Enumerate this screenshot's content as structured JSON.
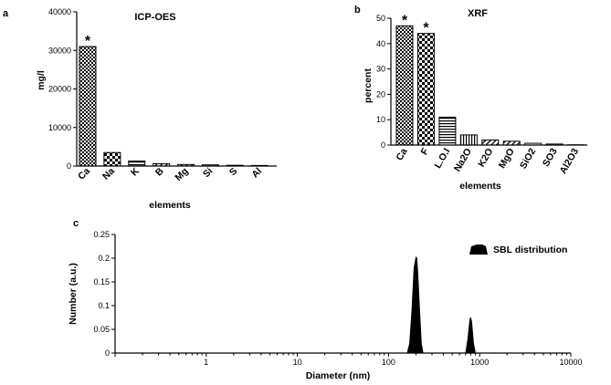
{
  "chart_data": [
    {
      "panel": "a",
      "type": "bar",
      "title": "ICP-OES",
      "xlabel": "elements",
      "ylabel": "mg/l",
      "ylim": [
        0,
        40000
      ],
      "yticks": [
        0,
        10000,
        20000,
        30000,
        40000
      ],
      "categories": [
        "Ca",
        "Na",
        "K",
        "B",
        "Mg",
        "Si",
        "S",
        "Al"
      ],
      "values": [
        31000,
        3500,
        1300,
        600,
        400,
        300,
        200,
        150
      ],
      "annotations": [
        {
          "category": "Ca",
          "text": "*"
        }
      ]
    },
    {
      "panel": "b",
      "type": "bar",
      "title": "XRF",
      "xlabel": "elements",
      "ylabel": "percent",
      "ylim": [
        0,
        50
      ],
      "yticks": [
        0,
        10,
        20,
        30,
        40,
        50
      ],
      "categories": [
        "Ca",
        "F",
        "L.O.I",
        "Na2O",
        "K2O",
        "MgO",
        "SiO2",
        "SO3",
        "Al2O3"
      ],
      "values": [
        47,
        44,
        11,
        4,
        2,
        1.5,
        0.7,
        0.4,
        0.1
      ],
      "annotations": [
        {
          "category": "Ca",
          "text": "*"
        },
        {
          "category": "F",
          "text": "*"
        }
      ]
    },
    {
      "panel": "c",
      "type": "area",
      "xlabel": "Diameter (nm)",
      "ylabel": "Number (a.u.)",
      "xscale": "log",
      "xlim": [
        0.1,
        10000
      ],
      "xticks": [
        1,
        10,
        100,
        1000,
        10000
      ],
      "xtick_labels": [
        "1",
        "10",
        "100",
        "1000",
        "10000"
      ],
      "ylim": [
        0,
        0.25
      ],
      "yticks": [
        0,
        0.05,
        0.1,
        0.15,
        0.2,
        0.25
      ],
      "ytick_labels": [
        "0",
        "0.05",
        "0.1",
        "0.15",
        "0.2",
        "0.25"
      ],
      "legend": "top-right",
      "series": [
        {
          "name": "SBL distribution",
          "x": [
            160,
            170,
            180,
            190,
            200,
            205,
            210,
            220,
            230,
            240,
            700,
            740,
            780,
            800,
            820,
            860,
            900
          ],
          "y": [
            0,
            0.02,
            0.09,
            0.18,
            0.203,
            0.2,
            0.17,
            0.09,
            0.02,
            0,
            0,
            0.03,
            0.072,
            0.075,
            0.065,
            0.02,
            0
          ]
        }
      ]
    }
  ]
}
